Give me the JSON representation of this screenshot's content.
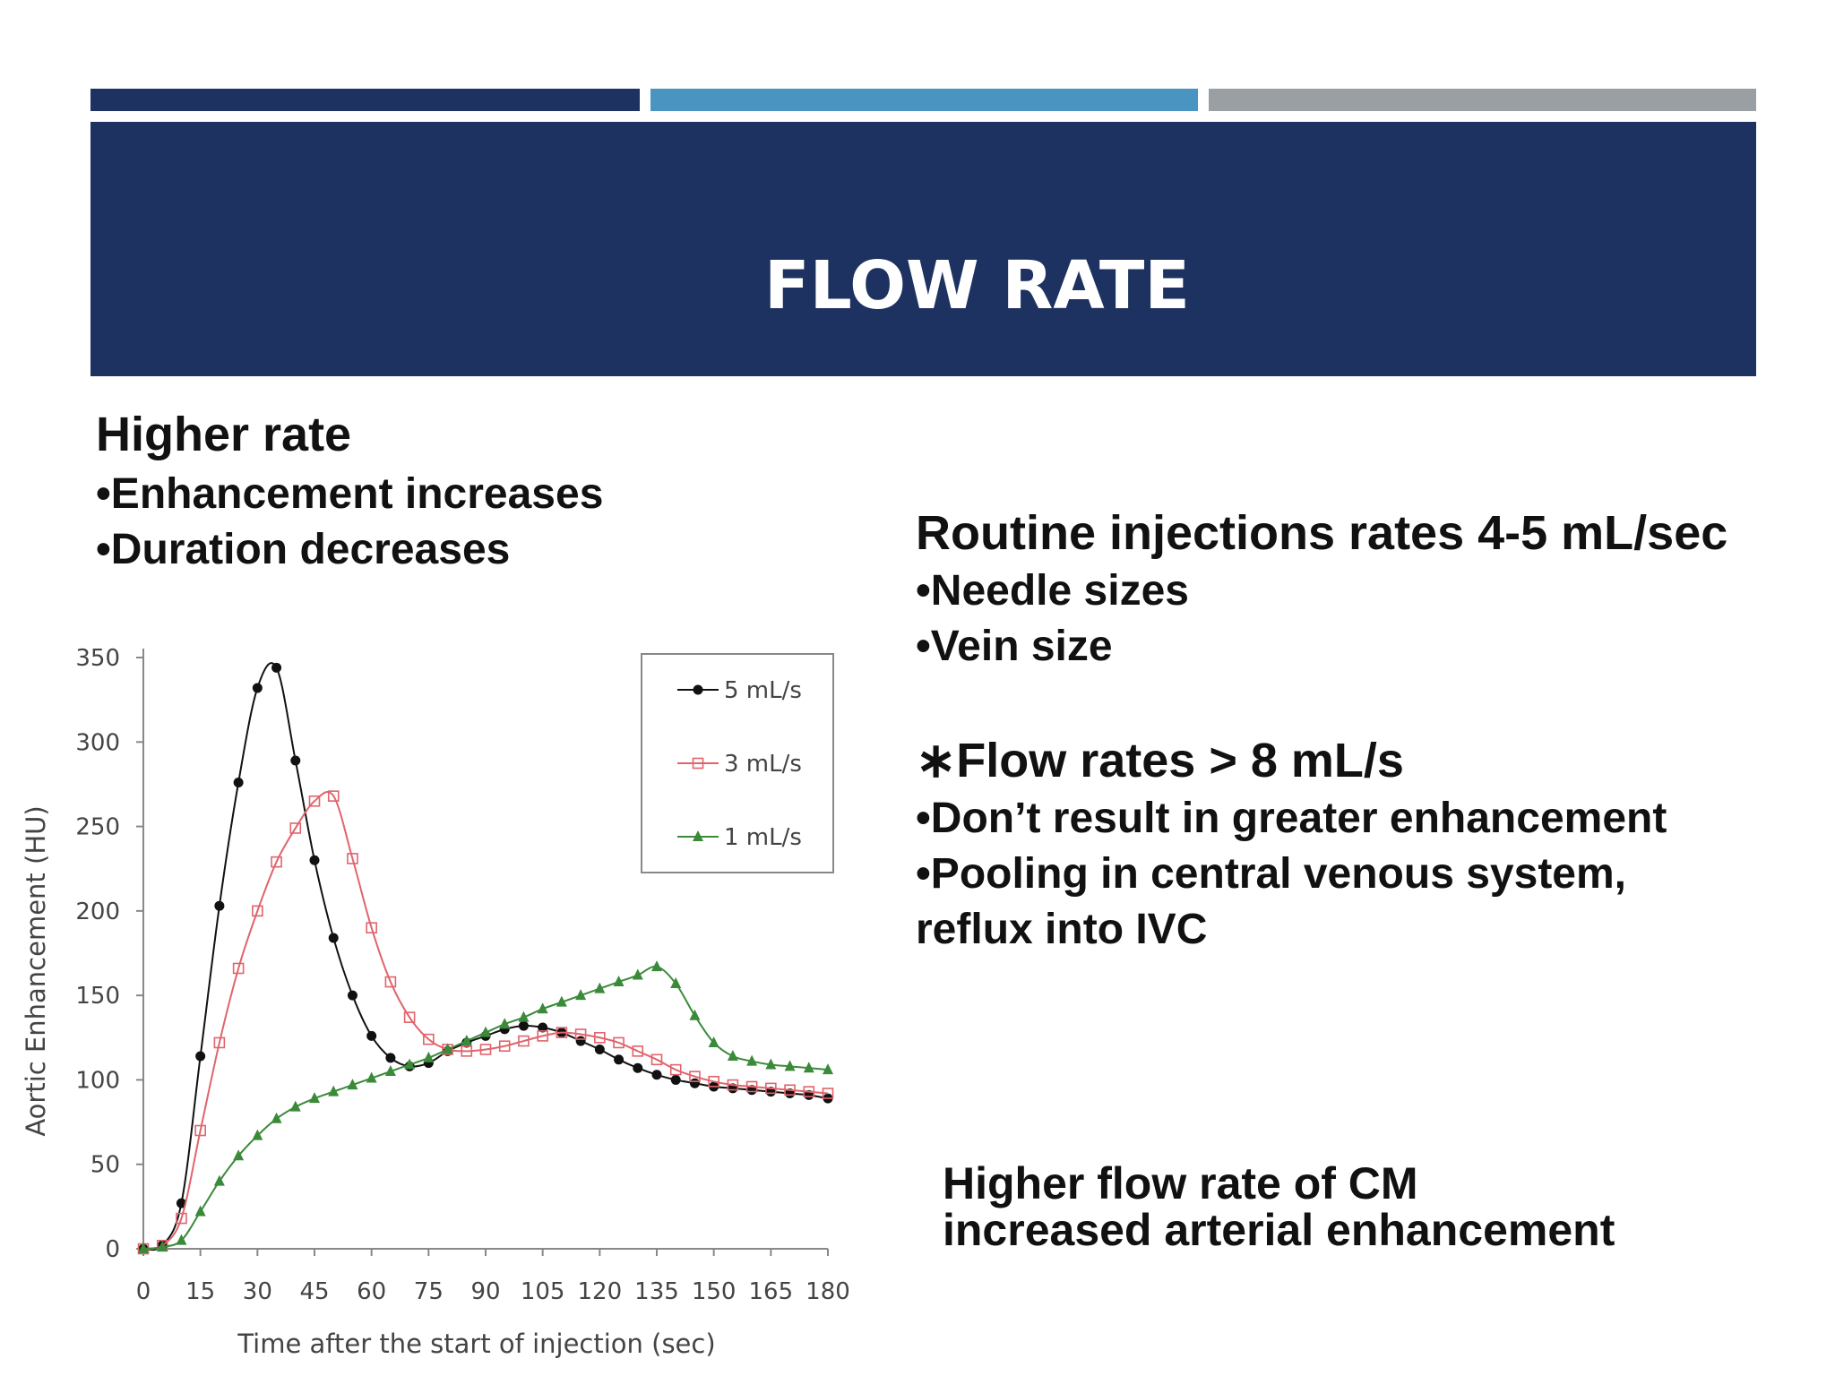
{
  "slide": {
    "title": "FLOW RATE",
    "left_heading": "Higher rate",
    "left_bullets": [
      "•Enhancement increases",
      "•Duration decreases"
    ],
    "right_heading": "Routine injections rates 4-5 mL/sec",
    "right_bullets": [
      "•Needle sizes",
      "•Vein size"
    ],
    "right_heading2": "∗Flow rates > 8 mL/s",
    "right_bullets2": [
      "•Don’t result in greater enhancement",
      "•Pooling in central venous system,",
      "reflux into IVC"
    ],
    "caption": [
      "Higher flow rate of CM",
      "increased arterial enhancement"
    ]
  },
  "colors": {
    "bar1": "#1d3260",
    "bar2": "#4a94c2",
    "bar3": "#9a9fa3",
    "header": "#1d3260",
    "series_5": "#111111",
    "series_3": "#e0646c",
    "series_1": "#3a8a3a"
  },
  "chart_data": {
    "type": "line",
    "xlabel": "Time after the start of injection (sec)",
    "ylabel": "Aortic Enhancement (HU)",
    "xlim": [
      0,
      180
    ],
    "ylim": [
      0,
      350
    ],
    "xticks": [
      0,
      15,
      30,
      45,
      60,
      75,
      90,
      105,
      120,
      135,
      150,
      165,
      180
    ],
    "yticks": [
      0,
      50,
      100,
      150,
      200,
      250,
      300,
      350
    ],
    "grid": false,
    "legend": "top-right",
    "series": [
      {
        "name": "5 mL/s",
        "marker": "circle",
        "x": [
          0,
          5,
          10,
          15,
          20,
          25,
          30,
          35,
          40,
          45,
          50,
          55,
          60,
          65,
          70,
          75,
          80,
          85,
          90,
          95,
          100,
          105,
          110,
          115,
          120,
          125,
          130,
          135,
          140,
          145,
          150,
          155,
          160,
          165,
          170,
          175,
          180
        ],
        "y": [
          0,
          2,
          27,
          114,
          203,
          276,
          332,
          344,
          289,
          230,
          184,
          150,
          126,
          113,
          108,
          110,
          117,
          122,
          126,
          130,
          132,
          131,
          128,
          123,
          118,
          112,
          107,
          103,
          100,
          98,
          96,
          95,
          94,
          93,
          92,
          91,
          89
        ]
      },
      {
        "name": "3 mL/s",
        "marker": "open-square",
        "x": [
          0,
          5,
          10,
          15,
          20,
          25,
          30,
          35,
          40,
          45,
          50,
          55,
          60,
          65,
          70,
          75,
          80,
          85,
          90,
          95,
          100,
          105,
          110,
          115,
          120,
          125,
          130,
          135,
          140,
          145,
          150,
          155,
          160,
          165,
          170,
          175,
          180
        ],
        "y": [
          0,
          2,
          18,
          70,
          122,
          166,
          200,
          229,
          249,
          265,
          268,
          231,
          190,
          158,
          137,
          124,
          118,
          117,
          118,
          120,
          123,
          126,
          128,
          127,
          125,
          122,
          117,
          112,
          106,
          102,
          99,
          97,
          96,
          95,
          94,
          93,
          92
        ]
      },
      {
        "name": "1 mL/s",
        "marker": "triangle",
        "x": [
          0,
          5,
          10,
          15,
          20,
          25,
          30,
          35,
          40,
          45,
          50,
          55,
          60,
          65,
          70,
          75,
          80,
          85,
          90,
          95,
          100,
          105,
          110,
          115,
          120,
          125,
          130,
          135,
          140,
          145,
          150,
          155,
          160,
          165,
          170,
          175,
          180
        ],
        "y": [
          0,
          1,
          5,
          22,
          40,
          55,
          67,
          77,
          84,
          89,
          93,
          97,
          101,
          105,
          109,
          113,
          118,
          123,
          128,
          133,
          137,
          142,
          146,
          150,
          154,
          158,
          162,
          167,
          157,
          138,
          122,
          114,
          111,
          109,
          108,
          107,
          106
        ]
      }
    ]
  }
}
